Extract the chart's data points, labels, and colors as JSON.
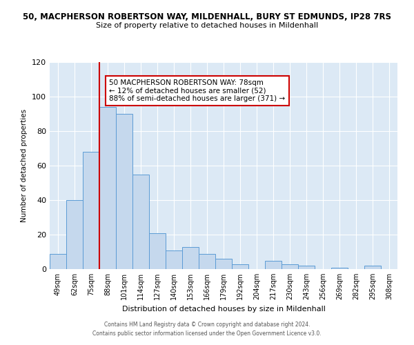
{
  "title": "50, MACPHERSON ROBERTSON WAY, MILDENHALL, BURY ST EDMUNDS, IP28 7RS",
  "subtitle": "Size of property relative to detached houses in Mildenhall",
  "xlabel": "Distribution of detached houses by size in Mildenhall",
  "ylabel": "Number of detached properties",
  "bin_labels": [
    "49sqm",
    "62sqm",
    "75sqm",
    "88sqm",
    "101sqm",
    "114sqm",
    "127sqm",
    "140sqm",
    "153sqm",
    "166sqm",
    "179sqm",
    "192sqm",
    "204sqm",
    "217sqm",
    "230sqm",
    "243sqm",
    "256sqm",
    "269sqm",
    "282sqm",
    "295sqm",
    "308sqm"
  ],
  "bar_values": [
    9,
    40,
    68,
    94,
    90,
    55,
    21,
    11,
    13,
    9,
    6,
    3,
    0,
    5,
    3,
    2,
    0,
    1,
    0,
    2,
    0
  ],
  "bar_color": "#c5d8ed",
  "bar_edge_color": "#5b9bd5",
  "vline_color": "#cc0000",
  "annotation_text": "50 MACPHERSON ROBERTSON WAY: 78sqm\n← 12% of detached houses are smaller (52)\n88% of semi-detached houses are larger (371) →",
  "annotation_box_edge": "#cc0000",
  "ylim": [
    0,
    120
  ],
  "yticks": [
    0,
    20,
    40,
    60,
    80,
    100,
    120
  ],
  "background_color": "#dce9f5",
  "figure_background": "#ffffff",
  "footer_line1": "Contains HM Land Registry data © Crown copyright and database right 2024.",
  "footer_line2": "Contains public sector information licensed under the Open Government Licence v3.0."
}
